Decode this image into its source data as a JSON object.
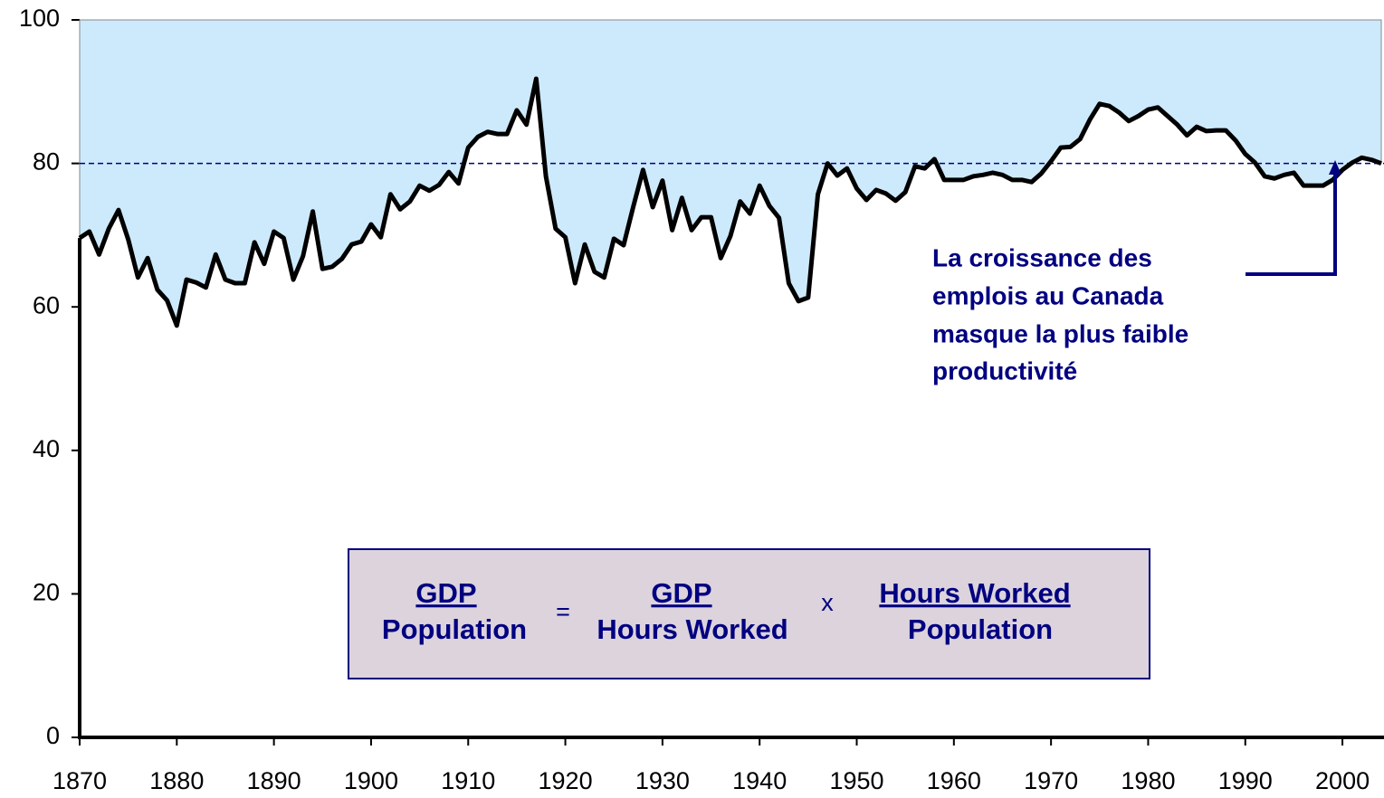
{
  "chart_data": {
    "type": "line",
    "x": [
      1870,
      1871,
      1872,
      1873,
      1874,
      1875,
      1876,
      1877,
      1878,
      1879,
      1880,
      1881,
      1882,
      1883,
      1884,
      1885,
      1886,
      1887,
      1888,
      1889,
      1890,
      1891,
      1892,
      1893,
      1894,
      1895,
      1896,
      1897,
      1898,
      1899,
      1900,
      1901,
      1902,
      1903,
      1904,
      1905,
      1906,
      1907,
      1908,
      1909,
      1910,
      1911,
      1912,
      1913,
      1914,
      1915,
      1916,
      1917,
      1918,
      1919,
      1920,
      1921,
      1922,
      1923,
      1924,
      1925,
      1926,
      1927,
      1928,
      1929,
      1930,
      1931,
      1932,
      1933,
      1934,
      1935,
      1936,
      1937,
      1938,
      1939,
      1940,
      1941,
      1942,
      1943,
      1944,
      1945,
      1946,
      1947,
      1948,
      1949,
      1950,
      1951,
      1952,
      1953,
      1954,
      1955,
      1956,
      1957,
      1958,
      1959,
      1960,
      1961,
      1962,
      1963,
      1964,
      1965,
      1966,
      1967,
      1968,
      1969,
      1970,
      1971,
      1972,
      1973,
      1974,
      1975,
      1976,
      1977,
      1978,
      1979,
      1980,
      1981,
      1982,
      1983,
      1984,
      1985,
      1986,
      1987,
      1988,
      1989,
      1990,
      1991,
      1992,
      1993,
      1994,
      1995,
      1996,
      1997,
      1998,
      1999,
      2000,
      2001,
      2002,
      2003,
      2004
    ],
    "series": [
      {
        "color": "#000000",
        "fill": "#cdeafc",
        "values": [
          69.6,
          70.5,
          67.3,
          70.9,
          73.5,
          69.4,
          64.1,
          66.8,
          62.4,
          60.9,
          57.4,
          63.8,
          63.4,
          62.7,
          67.3,
          63.8,
          63.3,
          63.3,
          69.0,
          66.0,
          70.5,
          69.6,
          63.8,
          67.1,
          73.3,
          65.3,
          65.6,
          66.7,
          68.7,
          69.1,
          71.5,
          69.7,
          75.7,
          73.6,
          74.7,
          76.9,
          76.2,
          77.0,
          78.8,
          77.2,
          82.2,
          83.7,
          84.4,
          84.1,
          84.1,
          87.4,
          85.4,
          91.8,
          78.2,
          70.9,
          69.7,
          63.3,
          68.7,
          64.9,
          64.1,
          69.5,
          68.6,
          74.0,
          79.1,
          73.9,
          77.6,
          70.7,
          75.2,
          70.7,
          72.5,
          72.5,
          66.8,
          69.9,
          74.7,
          73.0,
          76.9,
          74.1,
          72.4,
          63.3,
          60.8,
          61.3,
          75.7,
          80.0,
          78.3,
          79.3,
          76.5,
          74.9,
          76.3,
          75.8,
          74.8,
          76.0,
          79.6,
          79.3,
          80.6,
          77.7,
          77.7,
          77.7,
          78.2,
          78.4,
          78.7,
          78.4,
          77.7,
          77.7,
          77.4,
          78.6,
          80.3,
          82.2,
          82.3,
          83.4,
          86.1,
          88.3,
          88.0,
          87.1,
          85.9,
          86.6,
          87.5,
          87.8,
          86.6,
          85.4,
          83.9,
          85.1,
          84.5,
          84.6,
          84.6,
          83.2,
          81.3,
          80.1,
          78.2,
          77.9,
          78.4,
          78.7,
          76.9,
          76.9,
          76.9,
          77.7,
          79.1,
          80.1,
          80.8,
          80.5,
          80.0
        ]
      }
    ],
    "xlim": [
      1870,
      2004
    ],
    "xticks": [
      1870,
      1880,
      1890,
      1900,
      1910,
      1920,
      1930,
      1940,
      1950,
      1960,
      1970,
      1980,
      1990,
      2000
    ],
    "ylim": [
      0,
      100
    ],
    "yticks": [
      0,
      20,
      40,
      60,
      80,
      100
    ],
    "reference_line": {
      "value": 80,
      "color": "#000080"
    },
    "annotation": [
      "La croissance des",
      "emplois au Canada",
      "masque la plus faible",
      "productivité"
    ],
    "formula": {
      "left_top": "GDP",
      "left_bottom": "Population",
      "equals": "=",
      "mid_top": "GDP",
      "mid_bottom": "Hours Worked",
      "times": "x",
      "right_top": "Hours Worked",
      "right_bottom": "Population"
    }
  }
}
